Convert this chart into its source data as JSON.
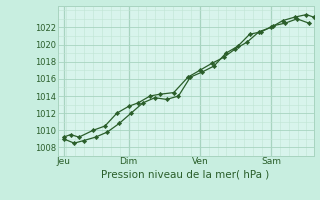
{
  "bg_color": "#c8eee0",
  "plot_bg_color": "#d8f4ec",
  "grid_major_color": "#a8d4c0",
  "grid_minor_color": "#c0e4d4",
  "line_color": "#2a5e2a",
  "marker_color": "#2a5e2a",
  "xlabel": "Pression niveau de la mer( hPa )",
  "ylim": [
    1007,
    1024.5
  ],
  "yticks": [
    1008,
    1010,
    1012,
    1014,
    1016,
    1018,
    1020,
    1022
  ],
  "xlim": [
    0,
    10.8
  ],
  "day_labels": [
    "Jeu",
    "Dim",
    "Ven",
    "Sam"
  ],
  "day_positions": [
    0.25,
    3.0,
    6.0,
    9.0
  ],
  "vline_positions": [
    0.25,
    3.0,
    6.0,
    9.0
  ],
  "series1_x": [
    0.25,
    0.55,
    0.9,
    1.5,
    2.0,
    2.5,
    3.0,
    3.4,
    3.9,
    4.3,
    4.9,
    5.5,
    6.0,
    6.5,
    7.0,
    7.5,
    8.0,
    8.5,
    9.0,
    9.5,
    10.0,
    10.5,
    10.8
  ],
  "series1_y": [
    1009.2,
    1009.5,
    1009.2,
    1010.0,
    1010.5,
    1012.0,
    1012.8,
    1013.2,
    1014.0,
    1014.2,
    1014.4,
    1016.2,
    1017.0,
    1017.8,
    1018.5,
    1019.5,
    1020.3,
    1021.5,
    1022.0,
    1022.8,
    1023.2,
    1023.5,
    1023.2
  ],
  "series2_x": [
    0.25,
    0.7,
    1.1,
    1.6,
    2.1,
    2.6,
    3.1,
    3.6,
    4.1,
    4.6,
    5.1,
    5.6,
    6.1,
    6.6,
    7.1,
    7.6,
    8.1,
    8.6,
    9.1,
    9.6,
    10.1,
    10.6
  ],
  "series2_y": [
    1009.0,
    1008.5,
    1008.8,
    1009.2,
    1009.8,
    1010.8,
    1012.0,
    1013.2,
    1013.8,
    1013.6,
    1014.0,
    1016.2,
    1016.8,
    1017.5,
    1019.0,
    1019.8,
    1021.2,
    1021.5,
    1022.2,
    1022.5,
    1023.0,
    1022.5
  ],
  "xlabel_fontsize": 7.5,
  "ytick_fontsize": 6.0,
  "xtick_fontsize": 6.5
}
